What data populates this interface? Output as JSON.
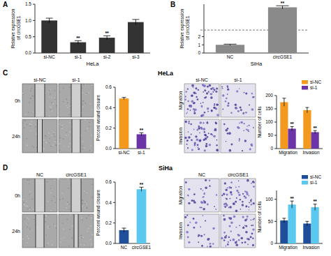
{
  "chart_data": [
    {
      "type": "bar",
      "ylabel": "Relative expression of circGSE1",
      "xlabel": "HeLa",
      "categories": [
        "si-NC",
        "si-1",
        "si-2",
        "si-3"
      ],
      "values": [
        1.0,
        0.33,
        0.47,
        0.95
      ],
      "errors": [
        0.07,
        0.05,
        0.06,
        0.08
      ],
      "annotations": [
        null,
        "**",
        "**",
        null
      ],
      "color": "#333333",
      "ylim": [
        0,
        1.5
      ],
      "yticks": [
        {
          "value": 0,
          "label": "0.0"
        },
        0.5,
        {
          "value": 1,
          "label": "1.0"
        },
        1.5
      ]
    },
    {
      "type": "bar",
      "ylabel": "Relative expression of circGSE1",
      "xlabel": "SiHa",
      "categories": [
        "NC",
        "circGSE1"
      ],
      "values": [
        1.0,
        92
      ],
      "errors": [
        0.08,
        4
      ],
      "annotations": [
        null,
        "**"
      ],
      "color": "#8a8a8a",
      "ylim": [
        0,
        100
      ],
      "yticks": [
        0,
        1,
        2
      ],
      "y_break": [
        2.5,
        40
      ]
    },
    {
      "type": "bar",
      "ylabel": "Percent wound closure",
      "categories": [
        "si-NC",
        "si-1"
      ],
      "values": [
        0.49,
        0.14
      ],
      "errors": [
        0.01,
        0.015
      ],
      "annotations": [
        null,
        "**"
      ],
      "colors": [
        "#f39a1e",
        "#6b35a7"
      ],
      "ylim": [
        0,
        0.6
      ],
      "yticks": [
        {
          "value": 0,
          "label": "0.0"
        },
        0.2,
        0.4,
        0.6
      ]
    },
    {
      "type": "bar",
      "ylabel": "Number of cells",
      "categories": [
        "Migration",
        "Invasion"
      ],
      "series": [
        {
          "name": "si-NC",
          "color": "#f39a1e",
          "values": [
            175,
            145
          ],
          "errors": [
            15,
            10
          ]
        },
        {
          "name": "si-1",
          "color": "#6b35a7",
          "values": [
            75,
            62
          ],
          "errors": [
            8,
            6
          ],
          "annotations": [
            "**",
            "**"
          ]
        }
      ],
      "legend": "upper right",
      "ylim": [
        0,
        200
      ],
      "yticks": [
        0,
        50,
        100,
        150,
        200
      ]
    },
    {
      "type": "bar",
      "ylabel": "Percent wound closure",
      "categories": [
        "NC",
        "circGSE1"
      ],
      "values": [
        0.13,
        0.53
      ],
      "errors": [
        0.02,
        0.02
      ],
      "annotations": [
        null,
        "**"
      ],
      "colors": [
        "#1f4e9a",
        "#5bc8f0"
      ],
      "ylim": [
        0,
        0.6
      ],
      "yticks": [
        {
          "value": 0,
          "label": "0.0"
        },
        0.2,
        0.4,
        0.6
      ]
    },
    {
      "type": "bar",
      "ylabel": "Number of cells",
      "categories": [
        "Migration",
        "Invasion"
      ],
      "series": [
        {
          "name": "si-NC",
          "color": "#1f4e9a",
          "values": [
            52,
            45
          ],
          "errors": [
            5,
            5
          ]
        },
        {
          "name": "si-1",
          "color": "#5bc8f0",
          "values": [
            88,
            82
          ],
          "errors": [
            8,
            7
          ],
          "annotations": [
            "**",
            "**"
          ]
        }
      ],
      "legend": "upper right",
      "ylim": [
        0,
        120
      ],
      "yticks": [
        0,
        50,
        100
      ]
    }
  ],
  "figure": {
    "panel_labels": [
      "A",
      "B",
      "C",
      "D"
    ],
    "headers": [
      "HeLa",
      "SiHa"
    ],
    "photo_grids": [
      {
        "columns": [
          "si-NC",
          "si-1"
        ],
        "rows": [
          "0h",
          "24h"
        ]
      },
      {
        "columns": [
          "si-NC",
          "si-1"
        ],
        "rows": [
          "Migration",
          "Invasion"
        ]
      },
      {
        "columns": [
          "NC",
          "circGSE1"
        ],
        "rows": [
          "0h",
          "24h"
        ]
      },
      {
        "columns": [
          "NC",
          "circGSE1"
        ],
        "rows": [
          "Migration",
          "Invasion"
        ]
      }
    ]
  }
}
